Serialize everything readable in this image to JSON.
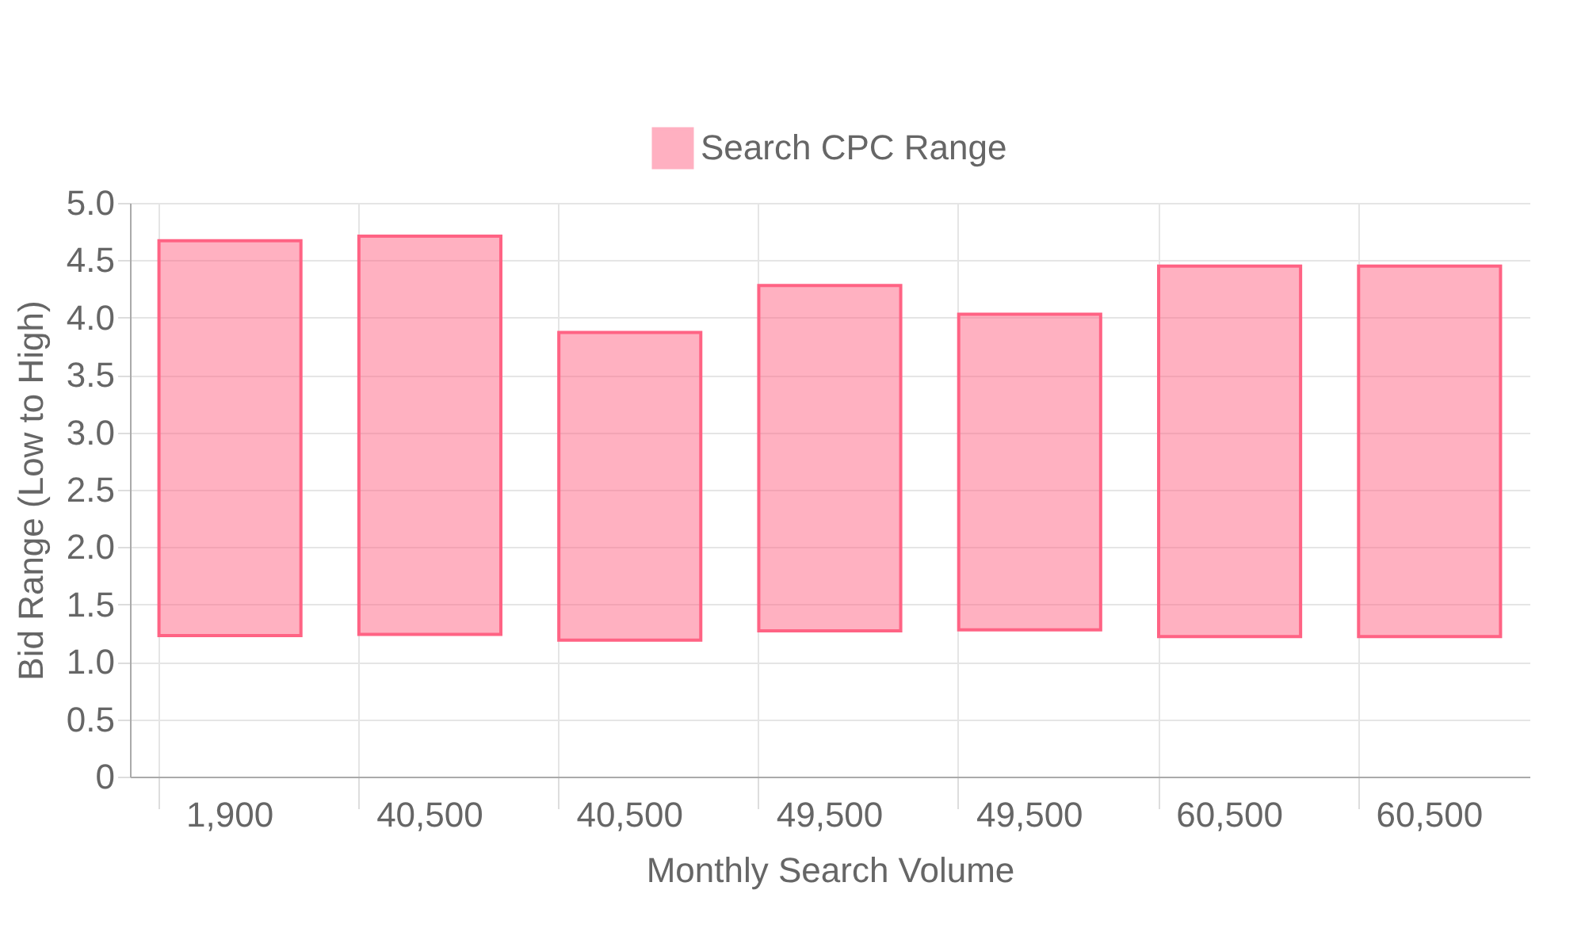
{
  "chart_data": {
    "type": "bar",
    "xlabel": "Monthly Search Volume",
    "ylabel": "Bid Range (Low to High)",
    "categories": [
      "1,900",
      "40,500",
      "40,500",
      "49,500",
      "49,500",
      "60,500",
      "60,500"
    ],
    "series": [
      {
        "name": "Search CPC Range",
        "color": "#ff6384",
        "values": [
          3.44,
          3.47,
          2.68,
          3.01,
          2.75,
          3.23,
          3.23
        ],
        "base": [
          1.23,
          1.24,
          1.19,
          1.27,
          1.28,
          1.22,
          1.22
        ]
      }
    ],
    "ylim": [
      0,
      5
    ],
    "yticks": [
      0,
      {
        "value": 0.5,
        "label": "0.5"
      },
      {
        "value": 1,
        "label": "1.0"
      },
      {
        "value": 1.5,
        "label": "1.5"
      },
      {
        "value": 2,
        "label": "2.0"
      },
      {
        "value": 2.5,
        "label": "2.5"
      },
      {
        "value": 3,
        "label": "3.0"
      },
      {
        "value": 3.5,
        "label": "3.5"
      },
      {
        "value": 4,
        "label": "4.0"
      },
      {
        "value": 4.5,
        "label": "4.5"
      },
      {
        "value": 5,
        "label": "5.0"
      }
    ],
    "grid": true,
    "legend": "top"
  }
}
